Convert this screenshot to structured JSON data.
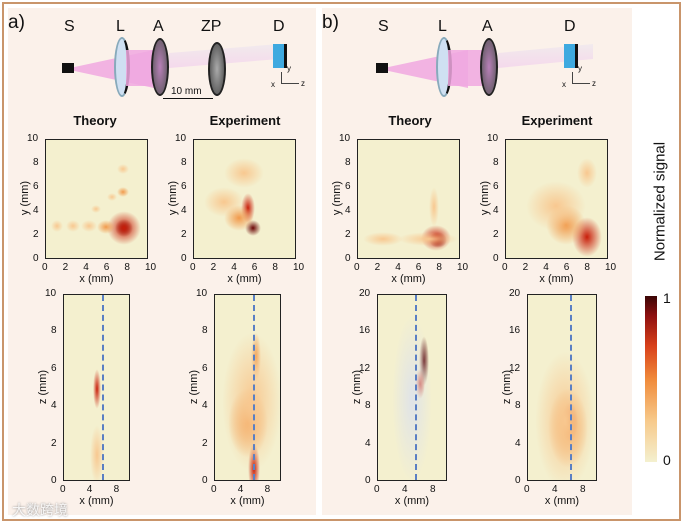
{
  "panel_a": {
    "label": "a)",
    "schematic": {
      "S": "S",
      "L": "L",
      "A": "A",
      "ZP": "ZP",
      "D": "D",
      "distance": "10 mm",
      "axes": {
        "x": "x",
        "y": "y",
        "z": "z"
      }
    },
    "theory_title": "Theory",
    "experiment_title": "Experiment",
    "xy_plots": {
      "xlabel": "x (mm)",
      "ylabel": "y (mm)",
      "xticks": [
        "0",
        "2",
        "4",
        "6",
        "8",
        "10"
      ],
      "yticks": [
        "0",
        "2",
        "4",
        "6",
        "8",
        "10"
      ]
    },
    "xz_plots": {
      "xlabel": "x (mm)",
      "ylabel": "z (mm)",
      "xticks": [
        "0",
        "4",
        "8"
      ],
      "yticks": [
        "0",
        "2",
        "4",
        "6",
        "8",
        "10"
      ]
    }
  },
  "panel_b": {
    "label": "b)",
    "schematic": {
      "S": "S",
      "L": "L",
      "A": "A",
      "D": "D",
      "axes": {
        "x": "x",
        "y": "y",
        "z": "z"
      }
    },
    "theory_title": "Theory",
    "experiment_title": "Experiment",
    "xy_plots": {
      "xlabel": "x (mm)",
      "ylabel": "y (mm)",
      "xticks": [
        "0",
        "2",
        "4",
        "6",
        "8",
        "10"
      ],
      "yticks": [
        "0",
        "2",
        "4",
        "6",
        "8",
        "10"
      ]
    },
    "xz_plots": {
      "xlabel": "x (mm)",
      "ylabel": "z (mm)",
      "xticks": [
        "0",
        "4",
        "8"
      ],
      "yticks": [
        "0",
        "4",
        "8",
        "12",
        "16",
        "20"
      ]
    }
  },
  "colorbar": {
    "label": "Normalized signal",
    "max": "1",
    "min": "0"
  },
  "watermark": "大数跨境"
}
